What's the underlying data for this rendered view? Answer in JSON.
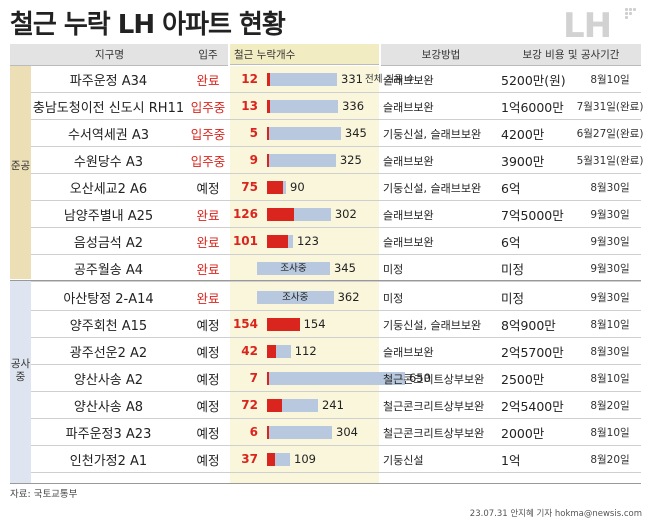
{
  "title": "철근 누락 LH 아파트 현황",
  "logo": "LH",
  "headers": {
    "district": "지구명",
    "occupancy": "입주",
    "missing": "철근 누락개수",
    "method": "보강방법",
    "cost": "보강 비용 및 공사기간"
  },
  "groups": [
    {
      "label": "준공"
    },
    {
      "label": "공사 중"
    }
  ],
  "colors": {
    "missing_bar": "#d9251d",
    "total_bar": "#b7c8df",
    "status_red": "#d9251d",
    "group1": "#ecdfb5",
    "group2": "#dfe5f0",
    "chart_bg": "#faf6dc"
  },
  "chart_data": {
    "type": "bar",
    "categories": [
      "파주운정 A34",
      "충남도청이전 신도시 RH11",
      "수서역세권 A3",
      "수원당수 A3",
      "오산세교2 A6",
      "남양주별내 A25",
      "음성금석 A2",
      "공주월송 A4",
      "아산탕정 2-A14",
      "양주회천 A15",
      "광주선운2 A2",
      "양산사송 A2",
      "양산사송 A8",
      "파주운정3 A23",
      "인천가정2 A1"
    ],
    "series": [
      {
        "name": "철근 누락개수",
        "values": [
          12,
          13,
          5,
          9,
          75,
          126,
          101,
          null,
          null,
          154,
          42,
          7,
          72,
          6,
          37
        ]
      },
      {
        "name": "전체 기둥 수",
        "values": [
          331,
          336,
          345,
          325,
          90,
          302,
          123,
          345,
          362,
          154,
          112,
          650,
          241,
          304,
          109
        ]
      }
    ],
    "annotation": "전체 기둥 수",
    "unknown_label": "조사중"
  },
  "rows": [
    {
      "name": "파주운정 A34",
      "status": "완료",
      "status_red": true,
      "missing": "12",
      "total": "331",
      "method": "슬래브보완",
      "cost": "5200만(원)",
      "period": "8월10일"
    },
    {
      "name": "충남도청이전 신도시 RH11",
      "status": "입주중",
      "status_red": true,
      "missing": "13",
      "total": "336",
      "method": "슬래브보완",
      "cost": "1억6000만",
      "period": "7월31일(완료)"
    },
    {
      "name": "수서역세권 A3",
      "status": "입주중",
      "status_red": true,
      "missing": "5",
      "total": "345",
      "method": "기둥신설, 슬래브보완",
      "cost": "4200만",
      "period": "6월27일(완료)"
    },
    {
      "name": "수원당수 A3",
      "status": "입주중",
      "status_red": true,
      "missing": "9",
      "total": "325",
      "method": "슬래브보완",
      "cost": "3900만",
      "period": "5월31일(완료)"
    },
    {
      "name": "오산세교2 A6",
      "status": "예정",
      "status_red": false,
      "missing": "75",
      "total": "90",
      "method": "기둥신설, 슬래브보완",
      "cost": "6억",
      "period": "8월30일"
    },
    {
      "name": "남양주별내 A25",
      "status": "완료",
      "status_red": true,
      "missing": "126",
      "total": "302",
      "method": "슬래브보완",
      "cost": "7억5000만",
      "period": "9월30일"
    },
    {
      "name": "음성금석 A2",
      "status": "완료",
      "status_red": true,
      "missing": "101",
      "total": "123",
      "method": "슬래브보완",
      "cost": "6억",
      "period": "9월30일"
    },
    {
      "name": "공주월송 A4",
      "status": "완료",
      "status_red": true,
      "missing": "조사중",
      "total": "345",
      "method": "미정",
      "cost": "미정",
      "period": "9월30일"
    },
    {
      "name": "아산탕정 2-A14",
      "status": "완료",
      "status_red": true,
      "missing": "조사중",
      "total": "362",
      "method": "미정",
      "cost": "미정",
      "period": "9월30일"
    },
    {
      "name": "양주회천 A15",
      "status": "예정",
      "status_red": false,
      "missing": "154",
      "total": "154",
      "method": "기둥신설, 슬래브보완",
      "cost": "8억900만",
      "period": "8월10일"
    },
    {
      "name": "광주선운2 A2",
      "status": "예정",
      "status_red": false,
      "missing": "42",
      "total": "112",
      "method": "슬래브보완",
      "cost": "2억5700만",
      "period": "8월30일"
    },
    {
      "name": "양산사송 A2",
      "status": "예정",
      "status_red": false,
      "missing": "7",
      "total": "650",
      "method": "철근콘크리트상부보완",
      "cost": "2500만",
      "period": "8월10일"
    },
    {
      "name": "양산사송 A8",
      "status": "예정",
      "status_red": false,
      "missing": "72",
      "total": "241",
      "method": "철근콘크리트상부보완",
      "cost": "2억5400만",
      "period": "8월20일"
    },
    {
      "name": "파주운정3 A23",
      "status": "예정",
      "status_red": false,
      "missing": "6",
      "total": "304",
      "method": "철근콘크리트상부보완",
      "cost": "2000만",
      "period": "8월10일"
    },
    {
      "name": "인천가정2 A1",
      "status": "예정",
      "status_red": false,
      "missing": "37",
      "total": "109",
      "method": "기둥신설",
      "cost": "1억",
      "period": "8월20일"
    }
  ],
  "source": "자료: 국토교통부",
  "credit": "23.07.31 안지혜 기자 hokma@newsis.com"
}
